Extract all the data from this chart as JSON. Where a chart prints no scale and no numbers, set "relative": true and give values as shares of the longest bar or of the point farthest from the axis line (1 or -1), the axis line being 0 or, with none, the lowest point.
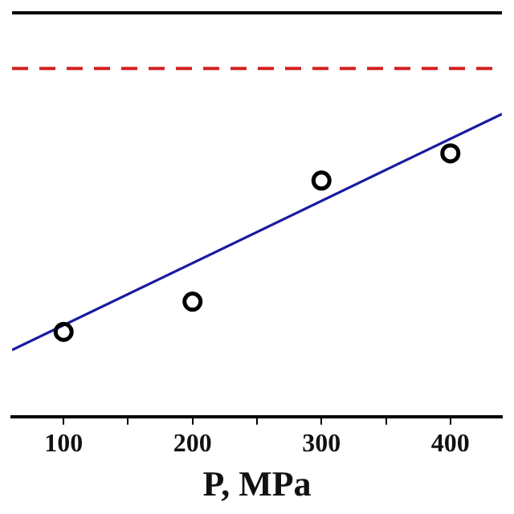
{
  "chart_data": {
    "type": "scatter",
    "relative": true,
    "xlabel": "P, MPa",
    "xlim": [
      60,
      440
    ],
    "xticks": [
      100,
      {
        "value": 150,
        "label": null
      },
      200,
      {
        "value": 250,
        "label": null
      },
      300,
      {
        "value": 350,
        "label": null
      },
      400
    ],
    "series": [
      {
        "type": "scatter",
        "color": "#000000",
        "x": [
          100,
          200,
          300,
          400
        ],
        "values": [
          0.28,
          0.38,
          0.78,
          0.87
        ],
        "marker": "circle"
      },
      {
        "type": "line",
        "color": "#1a1aa0",
        "x": [
          60,
          440
        ],
        "values": [
          0.22,
          1
        ],
        "marker": "none",
        "line_style": "solid"
      }
    ],
    "ref_lines": [
      {
        "axis": "y",
        "value": 1.15,
        "color": "#d42020",
        "line_style": "dashed"
      }
    ],
    "grid": false,
    "legend": false
  }
}
